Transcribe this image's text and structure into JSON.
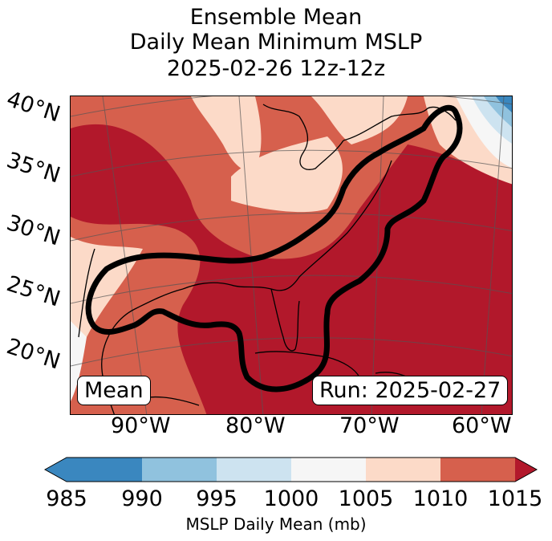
{
  "title": {
    "line1": "Ensemble Mean",
    "line2": "Daily Mean Minimum MSLP",
    "line3": "2025-02-26 12z-12z"
  },
  "map": {
    "lat_labels": [
      "40°N",
      "35°N",
      "30°N",
      "25°N",
      "20°N"
    ],
    "lon_labels": [
      "90°W",
      "80°W",
      "70°W",
      "60°W"
    ],
    "mean_label": "Mean",
    "run_label": "Run: 2025-02-27"
  },
  "colorbar": {
    "label": "MSLP Daily Mean (mb)",
    "ticks": [
      "985",
      "990",
      "995",
      "1000",
      "1005",
      "1010",
      "1015"
    ],
    "colors": [
      "#3a87bf",
      "#90c2de",
      "#cde3f0",
      "#f6f6f6",
      "#fcdac8",
      "#d6604d",
      "#b2182b"
    ]
  }
}
